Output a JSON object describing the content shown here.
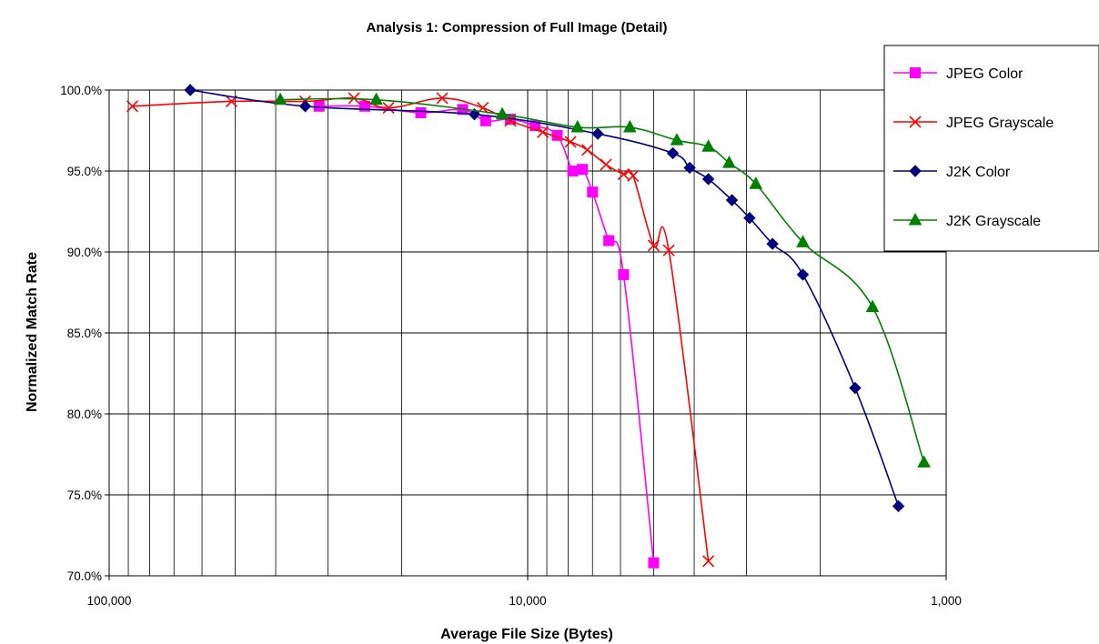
{
  "chart_data": {
    "type": "line",
    "title": "Analysis 1: Compression of Full Image (Detail)",
    "xlabel": "Average File Size (Bytes)",
    "ylabel": "Normalized Match Rate",
    "x_scale": "log",
    "x_reversed": true,
    "xlim": [
      100000,
      1000
    ],
    "ylim": [
      70.0,
      100.0
    ],
    "x_ticks": [
      {
        "value": 100000,
        "label": "100,000"
      },
      {
        "value": 10000,
        "label": "10,000"
      },
      {
        "value": 1000,
        "label": "1,000"
      }
    ],
    "y_ticks": [
      {
        "value": 100.0,
        "label": "100.0%"
      },
      {
        "value": 95.0,
        "label": "95.0%"
      },
      {
        "value": 90.0,
        "label": "90.0%"
      },
      {
        "value": 85.0,
        "label": "85.0%"
      },
      {
        "value": 80.0,
        "label": "80.0%"
      },
      {
        "value": 75.0,
        "label": "75.0%"
      },
      {
        "value": 70.0,
        "label": "70.0%"
      }
    ],
    "grid": true,
    "legend_position": "top-right",
    "series": [
      {
        "name": "JPEG Color",
        "color": "#ff00ff",
        "marker": "square",
        "points": [
          [
            31500,
            99.0
          ],
          [
            24500,
            99.0
          ],
          [
            18000,
            98.6
          ],
          [
            14300,
            98.8
          ],
          [
            12600,
            98.1
          ],
          [
            11000,
            98.2
          ],
          [
            9600,
            97.8
          ],
          [
            8500,
            97.2
          ],
          [
            7800,
            95.0
          ],
          [
            7400,
            95.1
          ],
          [
            7000,
            93.7
          ],
          [
            6400,
            90.7
          ],
          [
            5900,
            88.6
          ],
          [
            5000,
            70.8
          ]
        ]
      },
      {
        "name": "JPEG Grayscale",
        "color": "#ff0000",
        "marker": "x",
        "points": [
          [
            88000,
            99.0
          ],
          [
            51000,
            99.3
          ],
          [
            34000,
            99.3
          ],
          [
            26000,
            99.5
          ],
          [
            21500,
            98.9
          ],
          [
            16000,
            99.5
          ],
          [
            12800,
            98.9
          ],
          [
            11000,
            98.1
          ],
          [
            9200,
            97.4
          ],
          [
            7900,
            96.8
          ],
          [
            7200,
            96.3
          ],
          [
            6500,
            95.4
          ],
          [
            5900,
            94.8
          ],
          [
            5600,
            94.7
          ],
          [
            5000,
            90.4
          ],
          [
            4600,
            90.1
          ],
          [
            3700,
            70.9
          ]
        ]
      },
      {
        "name": "J2K Color",
        "color": "#000080",
        "marker": "diamond",
        "points": [
          [
            64000,
            100.0
          ],
          [
            34000,
            99.0
          ],
          [
            13400,
            98.5
          ],
          [
            6800,
            97.3
          ],
          [
            4500,
            96.1
          ],
          [
            4100,
            95.2
          ],
          [
            3700,
            94.5
          ],
          [
            3250,
            93.2
          ],
          [
            2950,
            92.1
          ],
          [
            2600,
            90.5
          ],
          [
            2200,
            88.6
          ],
          [
            1650,
            81.6
          ],
          [
            1300,
            74.3
          ]
        ]
      },
      {
        "name": "J2K Grayscale",
        "color": "#008000",
        "marker": "triangle",
        "points": [
          [
            39000,
            99.4
          ],
          [
            23000,
            99.4
          ],
          [
            11500,
            98.5
          ],
          [
            7600,
            97.7
          ],
          [
            5700,
            97.7
          ],
          [
            4400,
            96.9
          ],
          [
            3700,
            96.5
          ],
          [
            3300,
            95.5
          ],
          [
            2850,
            94.2
          ],
          [
            2200,
            90.6
          ],
          [
            1500,
            86.6
          ],
          [
            1130,
            77.0
          ]
        ]
      }
    ]
  }
}
